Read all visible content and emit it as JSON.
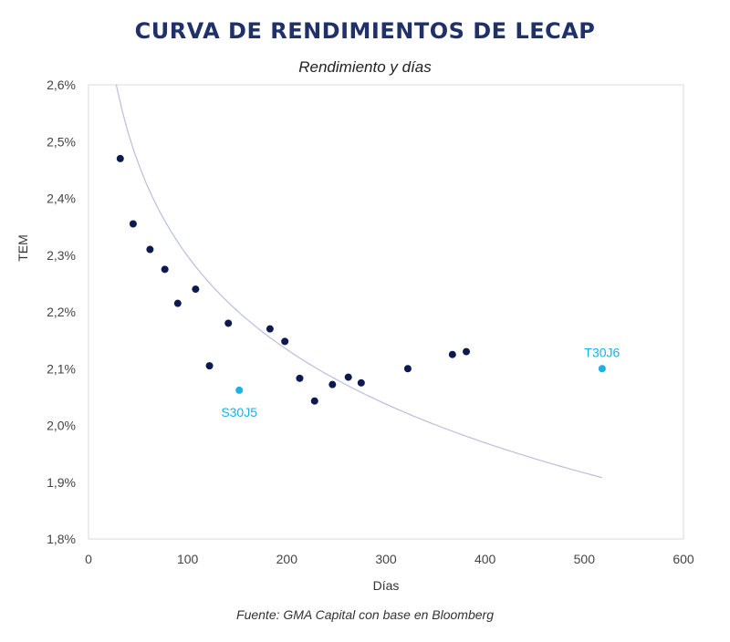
{
  "header": {
    "title": "CURVA DE RENDIMIENTOS DE LECAP",
    "subtitle": "Rendimiento y días"
  },
  "footer": {
    "source": "Fuente: GMA Capital con base en Bloomberg"
  },
  "colors": {
    "primary_points": "#0d1a4f",
    "highlight_points": "#1bb0e6",
    "trend_line": "#b9bedd",
    "title": "#1f3168",
    "frame": "#d9d9d9"
  },
  "chart_data": {
    "type": "scatter",
    "title": "CURVA DE RENDIMIENTOS DE LECAP",
    "subtitle": "Rendimiento y días",
    "xlabel": "Días",
    "ylabel": "TEM",
    "xlim": [
      0,
      600
    ],
    "ylim": [
      1.8,
      2.6
    ],
    "x_ticks": [
      "0",
      "100",
      "200",
      "300",
      "400",
      "500",
      "600"
    ],
    "y_ticks": [
      "1,8%",
      "1,9%",
      "2,0%",
      "2,1%",
      "2,2%",
      "2,3%",
      "2,4%",
      "2,5%",
      "2,6%"
    ],
    "grid": false,
    "legend": "none",
    "series": [
      {
        "points": [
          {
            "x": 32,
            "y": 2.47
          },
          {
            "x": 45,
            "y": 2.355
          },
          {
            "x": 62,
            "y": 2.31
          },
          {
            "x": 77,
            "y": 2.275
          },
          {
            "x": 90,
            "y": 2.215
          },
          {
            "x": 108,
            "y": 2.24
          },
          {
            "x": 122,
            "y": 2.105
          },
          {
            "x": 141,
            "y": 2.18
          },
          {
            "x": 183,
            "y": 2.17
          },
          {
            "x": 198,
            "y": 2.148
          },
          {
            "x": 213,
            "y": 2.083
          },
          {
            "x": 228,
            "y": 2.043
          },
          {
            "x": 246,
            "y": 2.072
          },
          {
            "x": 262,
            "y": 2.085
          },
          {
            "x": 275,
            "y": 2.075
          },
          {
            "x": 322,
            "y": 2.1
          },
          {
            "x": 367,
            "y": 2.125
          },
          {
            "x": 381,
            "y": 2.13
          }
        ]
      },
      {
        "points": [
          {
            "x": 152,
            "y": 2.062,
            "label": "S30J5"
          },
          {
            "x": 518,
            "y": 2.1,
            "label": "T30J6"
          }
        ]
      }
    ],
    "trendline": {
      "type": "logarithmic",
      "x_start": 28,
      "x_end": 518,
      "y_start": 2.6,
      "y_end": 1.908
    }
  }
}
